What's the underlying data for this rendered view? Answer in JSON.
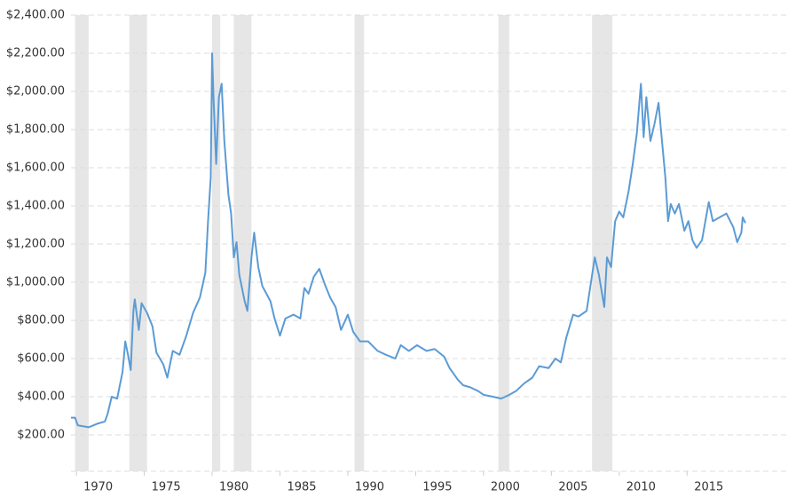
{
  "chart_data": {
    "type": "line",
    "color": "#5b9bd5",
    "x": [
      1969.6,
      1969.9,
      1970.1,
      1970.9,
      1971.6,
      1972.1,
      1972.3,
      1972.6,
      1973.0,
      1973.4,
      1973.6,
      1973.8,
      1974.0,
      1974.2,
      1974.3,
      1974.6,
      1974.8,
      1975.2,
      1975.6,
      1975.9,
      1976.4,
      1976.7,
      1977.1,
      1977.6,
      1978.1,
      1978.6,
      1979.1,
      1979.5,
      1979.7,
      1979.9,
      1980.0,
      1980.1,
      1980.3,
      1980.5,
      1980.7,
      1980.9,
      1981.2,
      1981.4,
      1981.6,
      1981.8,
      1982.0,
      1982.4,
      1982.6,
      1982.9,
      1983.1,
      1983.4,
      1983.7,
      1984.0,
      1984.3,
      1984.6,
      1985.0,
      1985.4,
      1986.0,
      1986.5,
      1986.8,
      1987.1,
      1987.5,
      1987.9,
      1988.3,
      1988.7,
      1989.1,
      1989.5,
      1990.0,
      1990.4,
      1990.9,
      1991.5,
      1992.2,
      1992.8,
      1993.5,
      1993.9,
      1994.5,
      1995.1,
      1995.8,
      1996.4,
      1997.1,
      1997.5,
      1998.1,
      1998.5,
      1999.0,
      1999.6,
      2000.0,
      2000.7,
      2001.3,
      2001.9,
      2002.4,
      2003.0,
      2003.6,
      2004.1,
      2004.8,
      2005.3,
      2005.7,
      2006.1,
      2006.6,
      2007.0,
      2007.6,
      2007.9,
      2008.2,
      2008.5,
      2008.9,
      2009.1,
      2009.4,
      2009.7,
      2010.0,
      2010.3,
      2010.7,
      2011.0,
      2011.3,
      2011.6,
      2011.8,
      2012.0,
      2012.3,
      2012.6,
      2012.9,
      2013.1,
      2013.4,
      2013.6,
      2013.8,
      2014.1,
      2014.4,
      2014.8,
      2015.1,
      2015.4,
      2015.7,
      2016.1,
      2016.4,
      2016.6,
      2016.9,
      2017.4,
      2017.9,
      2018.4,
      2018.7,
      2019.0,
      2019.1,
      2019.3
    ],
    "values": [
      290,
      290,
      250,
      240,
      260,
      270,
      310,
      400,
      390,
      530,
      690,
      620,
      540,
      850,
      910,
      750,
      890,
      840,
      770,
      630,
      570,
      500,
      640,
      620,
      720,
      840,
      920,
      1050,
      1320,
      1550,
      2200,
      1970,
      1620,
      1970,
      2040,
      1740,
      1460,
      1360,
      1130,
      1210,
      1040,
      900,
      850,
      1130,
      1260,
      1080,
      980,
      940,
      900,
      810,
      720,
      810,
      830,
      810,
      970,
      940,
      1030,
      1070,
      990,
      920,
      870,
      750,
      830,
      740,
      690,
      690,
      640,
      620,
      600,
      670,
      640,
      670,
      640,
      650,
      610,
      550,
      490,
      460,
      450,
      430,
      410,
      400,
      390,
      410,
      430,
      470,
      500,
      560,
      550,
      600,
      580,
      710,
      830,
      820,
      850,
      990,
      1130,
      1040,
      870,
      1130,
      1080,
      1320,
      1370,
      1340,
      1480,
      1620,
      1780,
      2040,
      1760,
      1970,
      1740,
      1830,
      1940,
      1780,
      1550,
      1320,
      1410,
      1360,
      1410,
      1270,
      1320,
      1220,
      1180,
      1220,
      1340,
      1420,
      1320,
      1340,
      1360,
      1290,
      1210,
      1260,
      1340,
      1310
    ],
    "recession_bands": [
      [
        1969.9,
        1970.9
      ],
      [
        1973.9,
        1975.2
      ],
      [
        1980.0,
        1980.6
      ],
      [
        1981.6,
        1982.9
      ],
      [
        1990.5,
        1991.2
      ],
      [
        2001.1,
        2001.9
      ],
      [
        2008.0,
        2009.5
      ]
    ],
    "xlim": [
      1969.6,
      2019.3
    ],
    "xticks": [
      1970,
      1975,
      1980,
      1985,
      1990,
      1995,
      2000,
      2005,
      2010,
      2015
    ],
    "ylim": [
      0,
      2400
    ],
    "yticks": [
      {
        "value": 200,
        "label": "$200.00"
      },
      {
        "value": 400,
        "label": "$400.00"
      },
      {
        "value": 600,
        "label": "$600.00"
      },
      {
        "value": 800,
        "label": "$800.00"
      },
      {
        "value": 1000,
        "label": "$1,000.00"
      },
      {
        "value": 1200,
        "label": "$1,200.00"
      },
      {
        "value": 1400,
        "label": "$1,400.00"
      },
      {
        "value": 1600,
        "label": "$1,600.00"
      },
      {
        "value": 1800,
        "label": "$1,800.00"
      },
      {
        "value": 2000,
        "label": "$2,000.00"
      },
      {
        "value": 2200,
        "label": "$2,200.00"
      },
      {
        "value": 2400,
        "label": "$2,400.00"
      }
    ],
    "grid": true
  }
}
